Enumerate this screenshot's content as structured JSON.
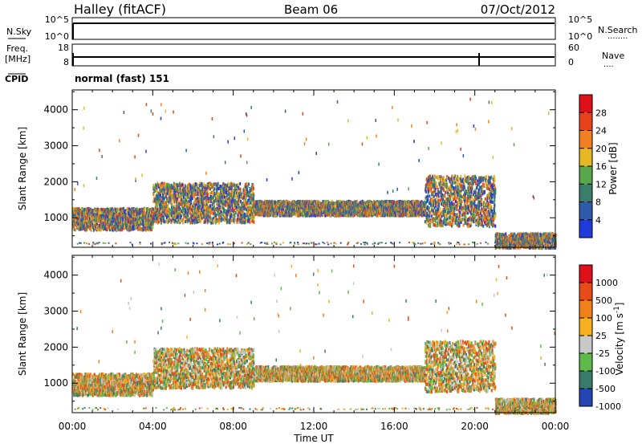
{
  "header": {
    "station": "Halley (fitACF)",
    "beam": "Beam 06",
    "date": "07/Oct/2012"
  },
  "noise_panel": {
    "left_label": "N.Sky",
    "left_ticks": [
      "10^5",
      "10^0"
    ],
    "right_ticks": [
      "10^5",
      "10^0"
    ],
    "right_label": "N.Search",
    "right_dots": "........"
  },
  "freq_panel": {
    "left_label_line1": "Freq.",
    "left_label_line2": "[MHz]",
    "left_ticks": [
      "18",
      "8"
    ],
    "right_ticks": [
      "60",
      "0"
    ],
    "right_label": "Nave",
    "right_dots": "....",
    "cpid_label": "CPID",
    "cpid_text": "normal (fast) 151"
  },
  "x_axis": {
    "ticks": [
      "00:00",
      "04:00",
      "08:00",
      "12:00",
      "16:00",
      "20:00",
      "00:00"
    ],
    "label": "Time UT"
  },
  "chart_data": [
    {
      "type": "heatmap",
      "panel": "power",
      "ylabel": "Slant Range [km]",
      "yticks": [
        1000,
        2000,
        3000,
        4000
      ],
      "ylim": [
        180,
        4550
      ],
      "xlim_hours": [
        0,
        24
      ],
      "colorbar_label": "Power [dB]",
      "colorbar_ticks": [
        "4",
        "8",
        "12",
        "16",
        "20",
        "24",
        "28"
      ],
      "colorbar_colors": [
        "#1f3bd9",
        "#2f5aa8",
        "#3a7d6a",
        "#5aa64a",
        "#e7b825",
        "#f08020",
        "#e8421c",
        "#e0101a"
      ],
      "echo_regions": [
        {
          "t": [
            0.0,
            4.0
          ],
          "range": [
            700,
            1300
          ],
          "mean": "high"
        },
        {
          "t": [
            4.0,
            9.0
          ],
          "range": [
            900,
            2000
          ],
          "mean": "medium"
        },
        {
          "t": [
            9.0,
            17.5
          ],
          "range": [
            1100,
            1500
          ],
          "mean": "low"
        },
        {
          "t": [
            17.5,
            21.0
          ],
          "range": [
            800,
            2200
          ],
          "mean": "medium"
        },
        {
          "t": [
            21.0,
            24.0
          ],
          "range": [
            200,
            600
          ],
          "mean": "high"
        }
      ]
    },
    {
      "type": "heatmap",
      "panel": "velocity",
      "ylabel": "Slant Range [km]",
      "yticks": [
        1000,
        2000,
        3000,
        4000
      ],
      "ylim": [
        180,
        4550
      ],
      "xlim_hours": [
        0,
        24
      ],
      "colorbar_label": "Velocity [m s^-1]",
      "colorbar_ticks": [
        "1000",
        "500",
        "100",
        "25",
        "-25",
        "-100",
        "-500",
        "-1000"
      ],
      "colorbar_colors": [
        "#2346b4",
        "#3a7a6a",
        "#5fb84a",
        "#c8c8c8",
        "#f5b020",
        "#f0801a",
        "#e84a18",
        "#e0101a"
      ],
      "echo_regions": [
        {
          "t": [
            0.0,
            4.0
          ],
          "range": [
            700,
            1300
          ],
          "mean": "negative"
        },
        {
          "t": [
            4.0,
            9.0
          ],
          "range": [
            900,
            2000
          ],
          "mean": "negative"
        },
        {
          "t": [
            9.0,
            17.5
          ],
          "range": [
            1100,
            1500
          ],
          "mean": "near-zero"
        },
        {
          "t": [
            17.5,
            21.0
          ],
          "range": [
            800,
            2200
          ],
          "mean": "negative"
        },
        {
          "t": [
            21.0,
            24.0
          ],
          "range": [
            200,
            600
          ],
          "mean": "negative"
        }
      ]
    }
  ]
}
